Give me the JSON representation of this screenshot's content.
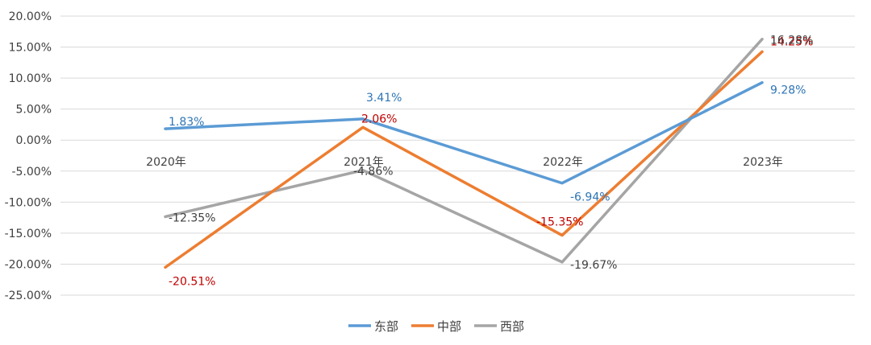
{
  "chart_data": {
    "type": "line",
    "categories": [
      "2020年",
      "2021年",
      "2022年",
      "2023年"
    ],
    "series": [
      {
        "name": "东部",
        "values": [
          1.83,
          3.41,
          -6.94,
          9.28
        ],
        "labels": [
          "1.83%",
          "3.41%",
          "-6.94%",
          "9.28%"
        ],
        "color": "#5B9BD5",
        "label_color": "#2E75B6"
      },
      {
        "name": "中部",
        "values": [
          -20.51,
          2.06,
          -15.35,
          14.25
        ],
        "labels": [
          "-20.51%",
          "2.06%",
          "-15.35%",
          "14.25%"
        ],
        "color": "#ED7D31",
        "label_color": "#C00000"
      },
      {
        "name": "西部",
        "values": [
          -12.35,
          -4.86,
          -19.67,
          16.28
        ],
        "labels": [
          "-12.35%",
          "-4.86%",
          "-19.67%",
          "16.28%"
        ],
        "color": "#A5A5A5",
        "label_color": "#404040"
      }
    ],
    "y_ticks": [
      "20.00%",
      "15.00%",
      "10.00%",
      "5.00%",
      "0.00%",
      "-5.00%",
      "-10.00%",
      "-15.00%",
      "-20.00%",
      "-25.00%"
    ],
    "ylim": [
      -25,
      20
    ],
    "grid": true,
    "legend_position": "bottom"
  }
}
